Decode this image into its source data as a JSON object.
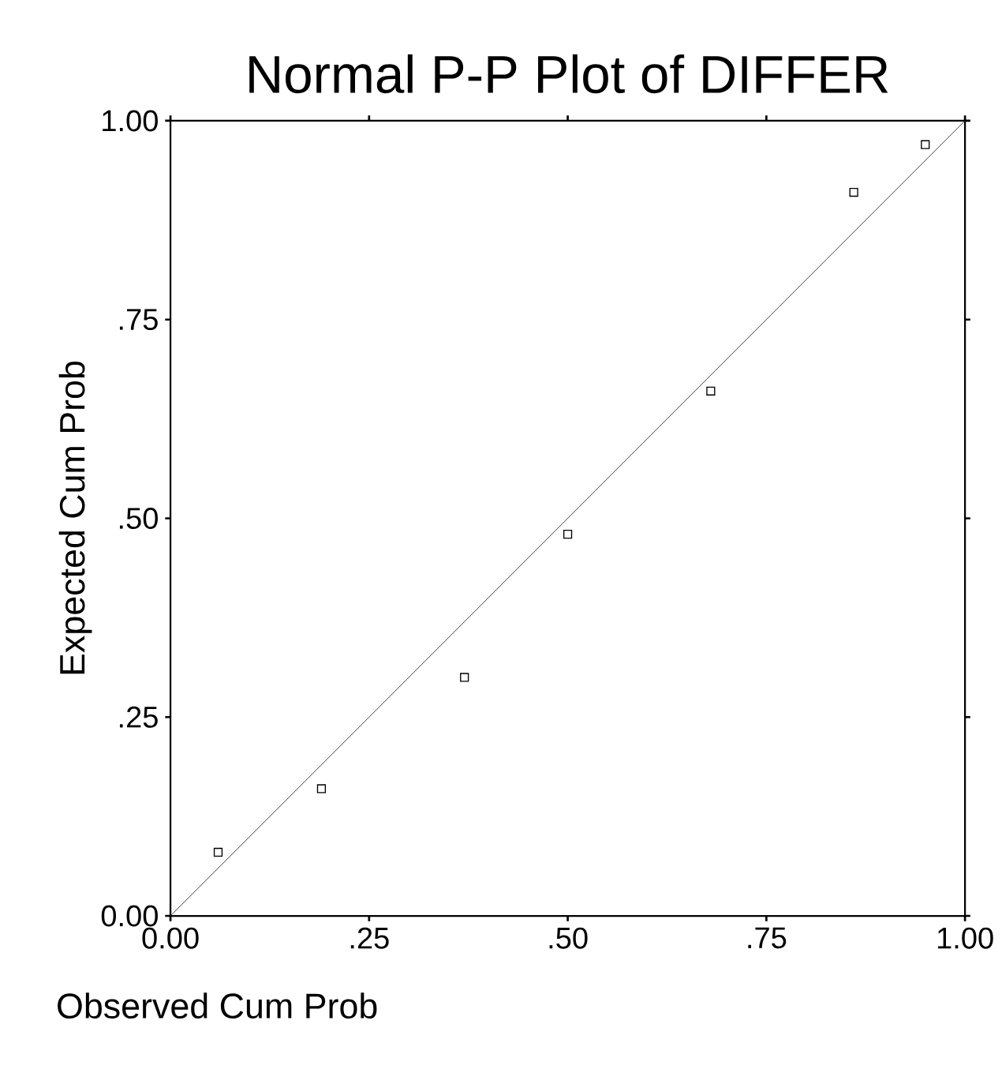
{
  "chart_data": {
    "type": "scatter",
    "title": "Normal P-P Plot of DIFFER",
    "xlabel": "Observed Cum Prob",
    "ylabel": "Expected Cum Prob",
    "xlim": [
      0,
      1
    ],
    "ylim": [
      0,
      1
    ],
    "xticks": [
      {
        "value": 0,
        "label": "0.00"
      },
      {
        "value": 0.25,
        "label": ".25"
      },
      {
        "value": 0.5,
        "label": ".50"
      },
      {
        "value": 0.75,
        "label": ".75"
      },
      {
        "value": 1,
        "label": "1.00"
      }
    ],
    "yticks": [
      {
        "value": 0,
        "label": "0.00"
      },
      {
        "value": 0.25,
        "label": ".25"
      },
      {
        "value": 0.5,
        "label": ".50"
      },
      {
        "value": 0.75,
        "label": ".75"
      },
      {
        "value": 1,
        "label": "1.00"
      }
    ],
    "grid": false,
    "series": [
      {
        "type": "line",
        "color": "#333333",
        "x": [
          0,
          1
        ],
        "values": [
          0,
          1
        ],
        "marker": "none"
      },
      {
        "color": "#000000",
        "marker": "square",
        "x": [
          0.06,
          0.19,
          0.37,
          0.5,
          0.68,
          0.86,
          0.95
        ],
        "values": [
          0.08,
          0.16,
          0.3,
          0.48,
          0.66,
          0.91,
          0.97
        ]
      }
    ]
  }
}
